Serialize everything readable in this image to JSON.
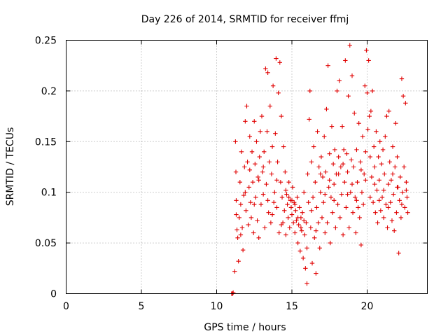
{
  "chart_data": {
    "type": "scatter",
    "title": "Day 226 of 2014, SRMTID for receiver ffmj",
    "xlabel": "GPS time / hours",
    "ylabel": "SRMTID / TECUs",
    "xlim": [
      0,
      24
    ],
    "ylim": [
      0,
      0.25
    ],
    "xticks": [
      0,
      5,
      10,
      15,
      20
    ],
    "xtick_labels": [
      "0",
      "5",
      "10",
      "15",
      "20"
    ],
    "yticks": [
      0,
      0.05,
      0.1,
      0.15,
      0.2,
      0.25
    ],
    "ytick_labels": [
      "0",
      "0.05",
      "0.1",
      "0.15",
      "0.2",
      "0.25"
    ],
    "grid": true,
    "marker": "plus",
    "color": "#e00000",
    "series": [
      {
        "points": [
          [
            11.0,
            0.0
          ],
          [
            11.05,
            0.0
          ],
          [
            11.1,
            0.001
          ],
          [
            11.2,
            0.022
          ],
          [
            11.25,
            0.15
          ],
          [
            11.28,
            0.12
          ],
          [
            11.3,
            0.092
          ],
          [
            11.35,
            0.063
          ],
          [
            11.4,
            0.055
          ],
          [
            11.45,
            0.032
          ],
          [
            11.5,
            0.075
          ],
          [
            11.55,
            0.11
          ],
          [
            11.6,
            0.088
          ],
          [
            11.65,
            0.14
          ],
          [
            11.7,
            0.065
          ],
          [
            11.75,
            0.043
          ],
          [
            11.8,
            0.097
          ],
          [
            11.85,
            0.125
          ],
          [
            11.9,
            0.17
          ],
          [
            11.95,
            0.082
          ],
          [
            12.0,
            0.185
          ],
          [
            12.05,
            0.13
          ],
          [
            12.1,
            0.068
          ],
          [
            12.15,
            0.105
          ],
          [
            12.2,
            0.155
          ],
          [
            12.25,
            0.09
          ],
          [
            12.3,
            0.075
          ],
          [
            12.35,
            0.14
          ],
          [
            12.4,
            0.11
          ],
          [
            12.45,
            0.06
          ],
          [
            12.5,
            0.17
          ],
          [
            12.55,
            0.128
          ],
          [
            12.6,
            0.095
          ],
          [
            12.65,
            0.15
          ],
          [
            12.7,
            0.072
          ],
          [
            12.75,
            0.115
          ],
          [
            12.8,
            0.055
          ],
          [
            12.85,
            0.135
          ],
          [
            12.9,
            0.16
          ],
          [
            12.95,
            0.088
          ],
          [
            13.0,
            0.175
          ],
          [
            13.05,
            0.12
          ],
          [
            13.1,
            0.098
          ],
          [
            13.15,
            0.14
          ],
          [
            13.2,
            0.065
          ],
          [
            13.25,
            0.222
          ],
          [
            13.3,
            0.108
          ],
          [
            13.35,
            0.16
          ],
          [
            13.4,
            0.218
          ],
          [
            13.45,
            0.08
          ],
          [
            13.5,
            0.13
          ],
          [
            13.55,
            0.185
          ],
          [
            13.6,
            0.07
          ],
          [
            13.65,
            0.118
          ],
          [
            13.7,
            0.145
          ],
          [
            13.75,
            0.205
          ],
          [
            13.8,
            0.09
          ],
          [
            13.85,
            0.1
          ],
          [
            13.9,
            0.158
          ],
          [
            13.95,
            0.232
          ],
          [
            14.0,
            0.085
          ],
          [
            14.05,
            0.13
          ],
          [
            14.1,
            0.198
          ],
          [
            14.15,
            0.06
          ],
          [
            14.2,
            0.228
          ],
          [
            14.25,
            0.11
          ],
          [
            14.3,
            0.175
          ],
          [
            14.35,
            0.095
          ],
          [
            14.4,
            0.07
          ],
          [
            14.45,
            0.145
          ],
          [
            14.5,
            0.082
          ],
          [
            14.55,
            0.12
          ],
          [
            14.6,
            0.058
          ],
          [
            14.65,
            0.098
          ],
          [
            14.7,
            0.088
          ],
          [
            14.75,
            0.075
          ],
          [
            14.8,
            0.11
          ],
          [
            14.85,
            0.065
          ],
          [
            14.9,
            0.092
          ],
          [
            14.95,
            0.085
          ],
          [
            15.0,
            0.078
          ],
          [
            15.05,
            0.105
          ],
          [
            15.1,
            0.07
          ],
          [
            15.15,
            0.09
          ],
          [
            15.2,
            0.06
          ],
          [
            15.25,
            0.082
          ],
          [
            15.3,
            0.072
          ],
          [
            15.35,
            0.095
          ],
          [
            15.4,
            0.05
          ],
          [
            15.45,
            0.068
          ],
          [
            15.5,
            0.085
          ],
          [
            15.55,
            0.042
          ],
          [
            15.6,
            0.075
          ],
          [
            15.65,
            0.062
          ],
          [
            15.7,
            0.08
          ],
          [
            15.75,
            0.035
          ],
          [
            15.8,
            0.1
          ],
          [
            15.85,
            0.058
          ],
          [
            15.9,
            0.025
          ],
          [
            15.95,
            0.07
          ],
          [
            16.0,
            0.01
          ],
          [
            16.05,
            0.118
          ],
          [
            16.1,
            0.09
          ],
          [
            16.15,
            0.172
          ],
          [
            16.2,
            0.2
          ],
          [
            16.25,
            0.065
          ],
          [
            16.3,
            0.13
          ],
          [
            16.35,
            0.03
          ],
          [
            16.4,
            0.095
          ],
          [
            16.45,
            0.145
          ],
          [
            16.5,
            0.055
          ],
          [
            16.55,
            0.11
          ],
          [
            16.6,
            0.02
          ],
          [
            16.65,
            0.085
          ],
          [
            16.7,
            0.16
          ],
          [
            16.75,
            0.07
          ],
          [
            16.8,
            0.125
          ],
          [
            16.85,
            0.045
          ],
          [
            16.9,
            0.1
          ],
          [
            16.95,
            0.135
          ],
          [
            17.0,
            0.075
          ],
          [
            17.05,
            0.115
          ],
          [
            17.1,
            0.09
          ],
          [
            17.15,
            0.155
          ],
          [
            17.2,
            0.06
          ],
          [
            17.25,
            0.12
          ],
          [
            17.3,
            0.182
          ],
          [
            17.35,
            0.07
          ],
          [
            17.4,
            0.225
          ],
          [
            17.45,
            0.105
          ],
          [
            17.5,
            0.138
          ],
          [
            17.55,
            0.05
          ],
          [
            17.6,
            0.095
          ],
          [
            17.65,
            0.165
          ],
          [
            17.7,
            0.08
          ],
          [
            17.75,
            0.128
          ],
          [
            17.8,
            0.108
          ],
          [
            17.85,
            0.142
          ],
          [
            17.9,
            0.065
          ],
          [
            17.95,
            0.118
          ],
          [
            18.0,
            0.2
          ],
          [
            18.05,
            0.088
          ],
          [
            18.1,
            0.135
          ],
          [
            18.15,
            0.21
          ],
          [
            18.2,
            0.075
          ],
          [
            18.25,
            0.125
          ],
          [
            18.3,
            0.098
          ],
          [
            18.35,
            0.165
          ],
          [
            18.4,
            0.058
          ],
          [
            18.45,
            0.142
          ],
          [
            18.5,
            0.11
          ],
          [
            18.55,
            0.23
          ],
          [
            18.6,
            0.085
          ],
          [
            18.65,
            0.138
          ],
          [
            18.7,
            0.12
          ],
          [
            18.75,
            0.195
          ],
          [
            18.8,
            0.065
          ],
          [
            18.85,
            0.245
          ],
          [
            18.9,
            0.1
          ],
          [
            18.95,
            0.132
          ],
          [
            19.0,
            0.215
          ],
          [
            19.05,
            0.08
          ],
          [
            19.1,
            0.125
          ],
          [
            19.15,
            0.178
          ],
          [
            19.2,
            0.095
          ],
          [
            19.25,
            0.06
          ],
          [
            19.3,
            0.142
          ],
          [
            19.35,
            0.11
          ],
          [
            19.4,
            0.085
          ],
          [
            19.45,
            0.168
          ],
          [
            19.5,
            0.075
          ],
          [
            19.55,
            0.13
          ],
          [
            19.6,
            0.048
          ],
          [
            19.65,
            0.1
          ],
          [
            19.7,
            0.155
          ],
          [
            19.75,
            0.088
          ],
          [
            19.8,
            0.118
          ],
          [
            19.85,
            0.205
          ],
          [
            19.9,
            0.14
          ],
          [
            19.95,
            0.24
          ],
          [
            20.0,
            0.198
          ],
          [
            20.05,
            0.162
          ],
          [
            20.1,
            0.23
          ],
          [
            20.15,
            0.175
          ],
          [
            20.2,
            0.135
          ],
          [
            20.25,
            0.18
          ],
          [
            20.3,
            0.115
          ],
          [
            20.35,
            0.2
          ],
          [
            20.4,
            0.09
          ],
          [
            20.45,
            0.145
          ],
          [
            20.5,
            0.125
          ],
          [
            20.55,
            0.08
          ],
          [
            20.6,
            0.16
          ],
          [
            20.65,
            0.102
          ],
          [
            20.7,
            0.07
          ],
          [
            20.75,
            0.135
          ],
          [
            20.8,
            0.112
          ],
          [
            20.85,
            0.15
          ],
          [
            20.9,
            0.082
          ],
          [
            20.95,
            0.128
          ],
          [
            21.0,
            0.095
          ],
          [
            21.05,
            0.142
          ],
          [
            21.1,
            0.075
          ],
          [
            21.15,
            0.118
          ],
          [
            21.2,
            0.155
          ],
          [
            21.25,
            0.088
          ],
          [
            21.3,
            0.175
          ],
          [
            21.35,
            0.065
          ],
          [
            21.4,
            0.108
          ],
          [
            21.45,
            0.18
          ],
          [
            21.5,
            0.13
          ],
          [
            21.55,
            0.09
          ],
          [
            21.6,
            0.112
          ],
          [
            21.65,
            0.072
          ],
          [
            21.7,
            0.145
          ],
          [
            21.75,
            0.098
          ],
          [
            21.8,
            0.062
          ],
          [
            21.85,
            0.125
          ],
          [
            21.9,
            0.168
          ],
          [
            21.95,
            0.08
          ],
          [
            22.0,
            0.135
          ],
          [
            22.05,
            0.105
          ],
          [
            22.1,
            0.04
          ],
          [
            22.15,
            0.092
          ],
          [
            22.2,
            0.115
          ],
          [
            22.25,
            0.075
          ],
          [
            22.3,
            0.212
          ],
          [
            22.35,
            0.1
          ],
          [
            22.4,
            0.195
          ],
          [
            22.45,
            0.125
          ],
          [
            22.5,
            0.085
          ],
          [
            22.55,
            0.188
          ],
          [
            22.6,
            0.11
          ],
          [
            22.65,
            0.095
          ],
          [
            22.7,
            0.08
          ],
          [
            11.3,
            0.078
          ],
          [
            11.6,
            0.058
          ],
          [
            11.9,
            0.1
          ],
          [
            12.2,
            0.122
          ],
          [
            12.5,
            0.088
          ],
          [
            12.8,
            0.112
          ],
          [
            13.1,
            0.125
          ],
          [
            13.4,
            0.092
          ],
          [
            13.7,
            0.078
          ],
          [
            14.0,
            0.112
          ],
          [
            14.3,
            0.068
          ],
          [
            14.6,
            0.102
          ],
          [
            14.8,
            0.095
          ],
          [
            15.0,
            0.092
          ],
          [
            15.2,
            0.088
          ],
          [
            15.4,
            0.075
          ],
          [
            15.6,
            0.065
          ],
          [
            15.8,
            0.072
          ],
          [
            16.0,
            0.045
          ],
          [
            16.3,
            0.082
          ],
          [
            16.6,
            0.062
          ],
          [
            16.9,
            0.118
          ],
          [
            17.2,
            0.098
          ],
          [
            17.5,
            0.112
          ],
          [
            17.8,
            0.092
          ],
          [
            18.1,
            0.118
          ],
          [
            18.4,
            0.128
          ],
          [
            18.7,
            0.098
          ],
          [
            19.0,
            0.108
          ],
          [
            19.3,
            0.092
          ],
          [
            19.6,
            0.122
          ],
          [
            19.9,
            0.112
          ],
          [
            20.2,
            0.095
          ],
          [
            20.5,
            0.108
          ],
          [
            20.8,
            0.092
          ],
          [
            21.1,
            0.102
          ],
          [
            21.4,
            0.085
          ],
          [
            21.7,
            0.118
          ],
          [
            22.0,
            0.105
          ],
          [
            22.3,
            0.088
          ],
          [
            22.6,
            0.102
          ]
        ]
      }
    ]
  }
}
